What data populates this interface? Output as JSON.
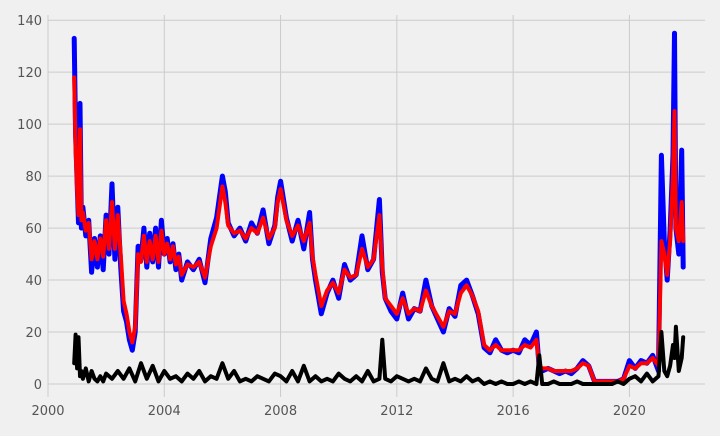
{
  "chart_data": {
    "type": "line",
    "title": "",
    "xlabel": "",
    "ylabel": "",
    "xlim": [
      2000.0,
      2022.6
    ],
    "ylim": [
      -5,
      142
    ],
    "x_ticks": [
      2000,
      2004,
      2008,
      2012,
      2016,
      2020
    ],
    "y_ticks": [
      0,
      20,
      40,
      60,
      80,
      100,
      120,
      140
    ],
    "grid": true,
    "legend": "none",
    "colors": {
      "background": "#f0f0f0",
      "grid": "#cbcbcb",
      "tick_text": "#555555"
    },
    "series": [
      {
        "color": "#0000ff",
        "x": [
          2000.9,
          2000.95,
          2001.0,
          2001.05,
          2001.1,
          2001.15,
          2001.2,
          2001.3,
          2001.4,
          2001.5,
          2001.6,
          2001.7,
          2001.8,
          2001.9,
          2002.0,
          2002.1,
          2002.2,
          2002.3,
          2002.4,
          2002.5,
          2002.6,
          2002.7,
          2002.8,
          2002.9,
          2003.0,
          2003.1,
          2003.2,
          2003.3,
          2003.4,
          2003.5,
          2003.6,
          2003.7,
          2003.8,
          2003.9,
          2004.0,
          2004.1,
          2004.2,
          2004.3,
          2004.4,
          2004.5,
          2004.6,
          2004.8,
          2005.0,
          2005.2,
          2005.4,
          2005.6,
          2005.8,
          2006.0,
          2006.1,
          2006.2,
          2006.4,
          2006.6,
          2006.8,
          2007.0,
          2007.2,
          2007.4,
          2007.6,
          2007.8,
          2007.9,
          2008.0,
          2008.2,
          2008.4,
          2008.6,
          2008.8,
          2009.0,
          2009.1,
          2009.2,
          2009.4,
          2009.6,
          2009.8,
          2010.0,
          2010.2,
          2010.4,
          2010.6,
          2010.8,
          2011.0,
          2011.2,
          2011.4,
          2011.5,
          2011.6,
          2011.8,
          2012.0,
          2012.2,
          2012.4,
          2012.6,
          2012.8,
          2013.0,
          2013.2,
          2013.4,
          2013.6,
          2013.8,
          2014.0,
          2014.2,
          2014.4,
          2014.6,
          2014.8,
          2015.0,
          2015.2,
          2015.4,
          2015.6,
          2015.8,
          2016.0,
          2016.2,
          2016.4,
          2016.6,
          2016.8,
          2016.9,
          2017.0,
          2017.2,
          2017.4,
          2017.6,
          2017.8,
          2018.0,
          2018.2,
          2018.4,
          2018.6,
          2018.8,
          2019.0,
          2019.2,
          2019.4,
          2019.6,
          2019.8,
          2020.0,
          2020.2,
          2020.4,
          2020.6,
          2020.8,
          2021.0,
          2021.1,
          2021.2,
          2021.3,
          2021.4,
          2021.5,
          2021.55,
          2021.6,
          2021.7,
          2021.8,
          2021.85
        ],
        "y": [
          133,
          96,
          78,
          62,
          108,
          60,
          68,
          57,
          63,
          43,
          56,
          45,
          57,
          44,
          65,
          50,
          77,
          48,
          68,
          45,
          28,
          24,
          17,
          13,
          20,
          53,
          48,
          60,
          45,
          58,
          47,
          60,
          45,
          63,
          50,
          56,
          47,
          54,
          44,
          50,
          40,
          47,
          44,
          48,
          39,
          56,
          64,
          80,
          74,
          62,
          57,
          60,
          55,
          62,
          58,
          67,
          54,
          61,
          72,
          78,
          64,
          55,
          63,
          52,
          66,
          48,
          40,
          27,
          35,
          40,
          33,
          46,
          40,
          42,
          57,
          44,
          48,
          71,
          43,
          33,
          28,
          25,
          35,
          25,
          29,
          28,
          40,
          30,
          25,
          20,
          29,
          26,
          38,
          40,
          34,
          27,
          14,
          12,
          17,
          13,
          12,
          13,
          12,
          17,
          15,
          20,
          6,
          5,
          6,
          5,
          4,
          5,
          4,
          6,
          9,
          7,
          1,
          1,
          1,
          1,
          1,
          2,
          9,
          6,
          9,
          8,
          11,
          5,
          88,
          55,
          40,
          59,
          88,
          135,
          60,
          50,
          90,
          45
        ],
        "stroke_width": 5
      },
      {
        "color": "#ff0000",
        "x": [
          2000.9,
          2000.95,
          2001.0,
          2001.05,
          2001.1,
          2001.15,
          2001.2,
          2001.3,
          2001.4,
          2001.5,
          2001.6,
          2001.7,
          2001.8,
          2001.9,
          2002.0,
          2002.1,
          2002.2,
          2002.3,
          2002.4,
          2002.5,
          2002.6,
          2002.7,
          2002.8,
          2002.9,
          2003.0,
          2003.1,
          2003.2,
          2003.3,
          2003.4,
          2003.5,
          2003.6,
          2003.7,
          2003.8,
          2003.9,
          2004.0,
          2004.1,
          2004.2,
          2004.3,
          2004.4,
          2004.5,
          2004.6,
          2004.8,
          2005.0,
          2005.2,
          2005.4,
          2005.6,
          2005.8,
          2006.0,
          2006.1,
          2006.2,
          2006.4,
          2006.6,
          2006.8,
          2007.0,
          2007.2,
          2007.4,
          2007.6,
          2007.8,
          2007.9,
          2008.0,
          2008.2,
          2008.4,
          2008.6,
          2008.8,
          2009.0,
          2009.1,
          2009.2,
          2009.4,
          2009.6,
          2009.8,
          2010.0,
          2010.2,
          2010.4,
          2010.6,
          2010.8,
          2011.0,
          2011.2,
          2011.4,
          2011.5,
          2011.6,
          2011.8,
          2012.0,
          2012.2,
          2012.4,
          2012.6,
          2012.8,
          2013.0,
          2013.2,
          2013.4,
          2013.6,
          2013.8,
          2014.0,
          2014.2,
          2014.4,
          2014.6,
          2014.8,
          2015.0,
          2015.2,
          2015.4,
          2015.6,
          2015.8,
          2016.0,
          2016.2,
          2016.4,
          2016.6,
          2016.8,
          2016.9,
          2017.0,
          2017.2,
          2017.4,
          2017.6,
          2017.8,
          2018.0,
          2018.2,
          2018.4,
          2018.6,
          2018.8,
          2019.0,
          2019.2,
          2019.4,
          2019.6,
          2019.8,
          2020.0,
          2020.2,
          2020.4,
          2020.6,
          2020.8,
          2021.0,
          2021.1,
          2021.2,
          2021.3,
          2021.4,
          2021.5,
          2021.55,
          2021.6,
          2021.7,
          2021.8,
          2021.85
        ],
        "y": [
          118,
          90,
          75,
          65,
          98,
          63,
          66,
          59,
          62,
          48,
          55,
          48,
          56,
          49,
          63,
          52,
          70,
          52,
          65,
          50,
          32,
          27,
          20,
          16,
          22,
          50,
          47,
          57,
          47,
          55,
          48,
          57,
          47,
          59,
          50,
          54,
          48,
          53,
          46,
          49,
          42,
          46,
          45,
          47,
          41,
          53,
          60,
          76,
          70,
          61,
          58,
          59,
          56,
          60,
          58,
          64,
          56,
          60,
          70,
          75,
          63,
          57,
          61,
          55,
          62,
          49,
          42,
          30,
          36,
          39,
          35,
          44,
          41,
          42,
          52,
          45,
          48,
          65,
          45,
          33,
          30,
          27,
          33,
          27,
          29,
          28,
          36,
          30,
          26,
          22,
          28,
          27,
          35,
          38,
          34,
          28,
          15,
          13,
          15,
          13,
          13,
          13,
          13,
          15,
          14,
          17,
          7,
          6,
          6,
          5,
          5,
          5,
          5,
          6,
          8,
          7,
          1,
          1,
          1,
          1,
          1,
          2,
          7,
          6,
          8,
          8,
          10,
          7,
          55,
          50,
          42,
          55,
          80,
          105,
          60,
          55,
          70,
          55
        ],
        "stroke_width": 4
      },
      {
        "color": "#000000",
        "x": [
          2000.9,
          2000.95,
          2001.0,
          2001.05,
          2001.1,
          2001.15,
          2001.2,
          2001.3,
          2001.4,
          2001.5,
          2001.6,
          2001.7,
          2001.8,
          2001.9,
          2002.0,
          2002.2,
          2002.4,
          2002.6,
          2002.8,
          2003.0,
          2003.2,
          2003.4,
          2003.6,
          2003.8,
          2004.0,
          2004.2,
          2004.4,
          2004.6,
          2004.8,
          2005.0,
          2005.2,
          2005.4,
          2005.6,
          2005.8,
          2006.0,
          2006.2,
          2006.4,
          2006.6,
          2006.8,
          2007.0,
          2007.2,
          2007.4,
          2007.6,
          2007.8,
          2008.0,
          2008.2,
          2008.4,
          2008.6,
          2008.8,
          2009.0,
          2009.2,
          2009.4,
          2009.6,
          2009.8,
          2010.0,
          2010.2,
          2010.4,
          2010.6,
          2010.8,
          2011.0,
          2011.2,
          2011.4,
          2011.5,
          2011.6,
          2011.8,
          2012.0,
          2012.2,
          2012.4,
          2012.6,
          2012.8,
          2013.0,
          2013.2,
          2013.4,
          2013.6,
          2013.8,
          2014.0,
          2014.2,
          2014.4,
          2014.6,
          2014.8,
          2015.0,
          2015.2,
          2015.4,
          2015.6,
          2015.8,
          2016.0,
          2016.2,
          2016.4,
          2016.6,
          2016.8,
          2016.9,
          2017.0,
          2017.2,
          2017.4,
          2017.6,
          2017.8,
          2018.0,
          2018.2,
          2018.4,
          2018.6,
          2018.8,
          2019.0,
          2019.2,
          2019.4,
          2019.6,
          2019.8,
          2020.0,
          2020.2,
          2020.4,
          2020.6,
          2020.8,
          2021.0,
          2021.1,
          2021.2,
          2021.3,
          2021.4,
          2021.5,
          2021.55,
          2021.6,
          2021.7,
          2021.8,
          2021.85
        ],
        "y": [
          8,
          19,
          6,
          18,
          3,
          5,
          2,
          6,
          1,
          5,
          2,
          1,
          3,
          1,
          4,
          2,
          5,
          2,
          6,
          1,
          8,
          2,
          7,
          1,
          5,
          2,
          3,
          1,
          4,
          2,
          5,
          1,
          3,
          2,
          8,
          2,
          5,
          1,
          2,
          1,
          3,
          2,
          1,
          4,
          3,
          1,
          5,
          1,
          7,
          1,
          3,
          1,
          2,
          1,
          4,
          2,
          1,
          3,
          1,
          5,
          1,
          2,
          17,
          2,
          1,
          3,
          2,
          1,
          2,
          1,
          6,
          2,
          1,
          8,
          1,
          2,
          1,
          3,
          1,
          2,
          0,
          1,
          0,
          1,
          0,
          0,
          1,
          0,
          1,
          0,
          11,
          0,
          0,
          1,
          0,
          0,
          0,
          1,
          0,
          0,
          0,
          0,
          0,
          0,
          1,
          0,
          2,
          3,
          1,
          4,
          1,
          3,
          20,
          5,
          3,
          7,
          15,
          10,
          22,
          5,
          10,
          18
        ],
        "stroke_width": 4
      }
    ]
  }
}
